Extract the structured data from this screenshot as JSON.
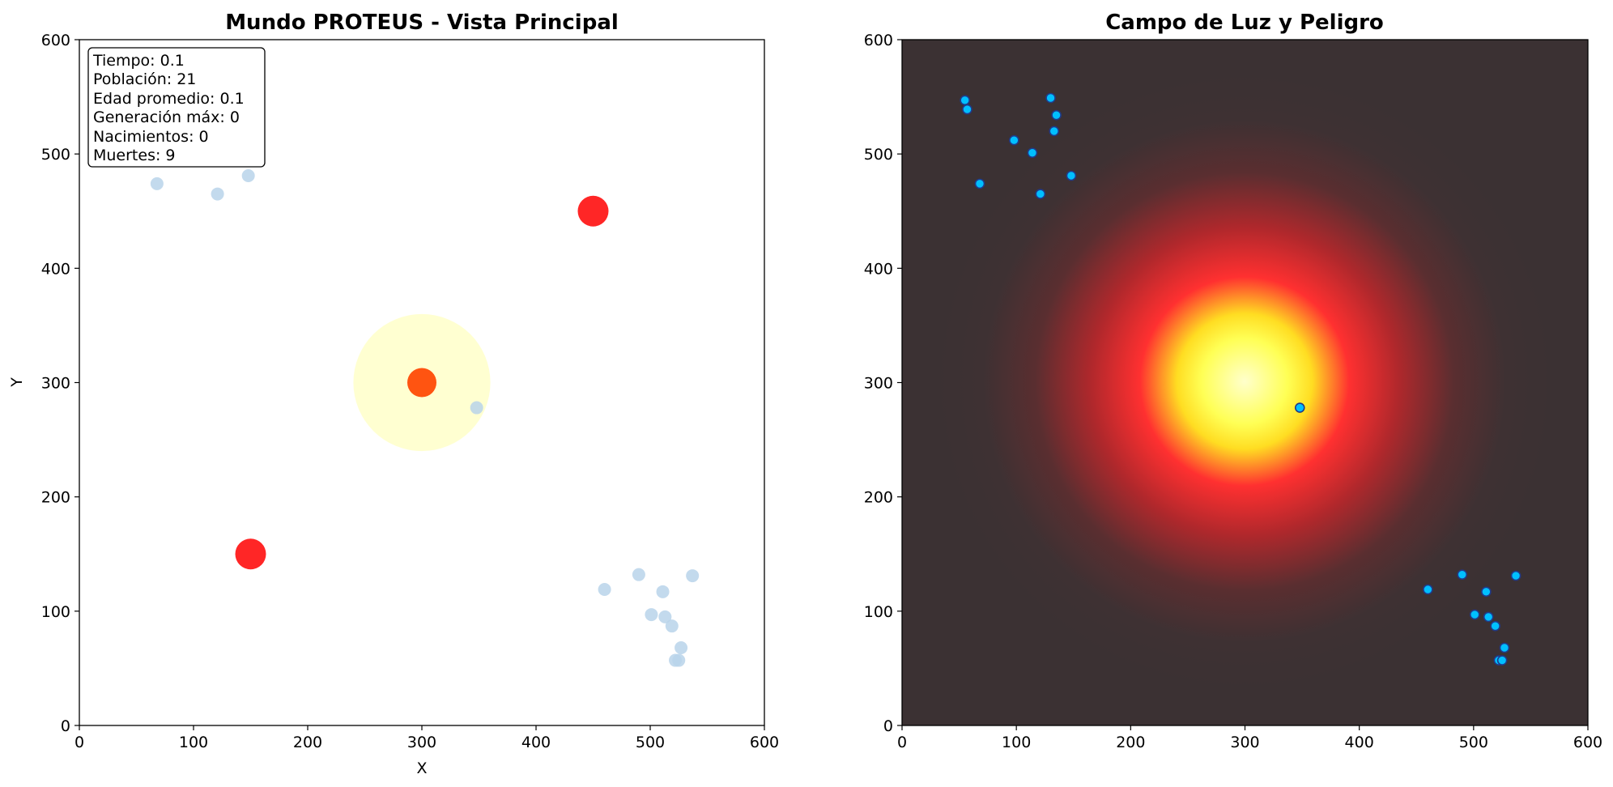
{
  "chart_data": [
    {
      "type": "scatter",
      "title": "Mundo PROTEUS - Vista Principal",
      "xlabel": "X",
      "ylabel": "Y",
      "xlim": [
        0,
        600
      ],
      "ylim": [
        0,
        600
      ],
      "xticks": [
        "0",
        "100",
        "200",
        "300",
        "400",
        "500",
        "600"
      ],
      "yticks": [
        "0",
        "100",
        "200",
        "300",
        "400",
        "500",
        "600"
      ],
      "grid": false,
      "light_source": {
        "x": 300,
        "y": 300,
        "radius": 60,
        "glow_color": "#ffffcc",
        "core_color": "#ff4500"
      },
      "hazards": [
        {
          "x": 450,
          "y": 450
        },
        {
          "x": 150,
          "y": 150
        }
      ],
      "hazard_color": "#ff1a1a",
      "organism_color": "#b9d3ea",
      "organisms": [
        {
          "x": 55,
          "y": 547
        },
        {
          "x": 57,
          "y": 539
        },
        {
          "x": 130,
          "y": 549
        },
        {
          "x": 135,
          "y": 534
        },
        {
          "x": 133,
          "y": 520
        },
        {
          "x": 98,
          "y": 512
        },
        {
          "x": 114,
          "y": 501
        },
        {
          "x": 148,
          "y": 481
        },
        {
          "x": 68,
          "y": 474
        },
        {
          "x": 121,
          "y": 465
        },
        {
          "x": 348,
          "y": 278
        },
        {
          "x": 490,
          "y": 132
        },
        {
          "x": 537,
          "y": 131
        },
        {
          "x": 460,
          "y": 119
        },
        {
          "x": 511,
          "y": 117
        },
        {
          "x": 501,
          "y": 97
        },
        {
          "x": 513,
          "y": 95
        },
        {
          "x": 519,
          "y": 87
        },
        {
          "x": 527,
          "y": 68
        },
        {
          "x": 522,
          "y": 57
        },
        {
          "x": 525,
          "y": 57
        }
      ],
      "stats": [
        "Tiempo: 0.1",
        "Población: 21",
        "Edad promedio: 0.1",
        "Generación máx: 0",
        "Nacimientos: 0",
        "Muertes: 9"
      ]
    },
    {
      "type": "heatmap",
      "title": "Campo de Luz y Peligro",
      "xlim": [
        0,
        600
      ],
      "ylim": [
        0,
        600
      ],
      "xticks": [
        "0",
        "100",
        "200",
        "300",
        "400",
        "500",
        "600"
      ],
      "yticks": [
        "0",
        "100",
        "200",
        "300",
        "400",
        "500",
        "600"
      ],
      "grid": false,
      "field_center": {
        "x": 300,
        "y": 300
      },
      "colors": {
        "background": "#3b3133",
        "mid": "#ff2a2a",
        "peak": "#ffffcc",
        "warm": "#ffff33"
      },
      "organism_color": "#00bfff",
      "organism_edge": "#1f3a8a",
      "organisms": [
        {
          "x": 55,
          "y": 547
        },
        {
          "x": 57,
          "y": 539
        },
        {
          "x": 130,
          "y": 549
        },
        {
          "x": 135,
          "y": 534
        },
        {
          "x": 133,
          "y": 520
        },
        {
          "x": 98,
          "y": 512
        },
        {
          "x": 114,
          "y": 501
        },
        {
          "x": 148,
          "y": 481
        },
        {
          "x": 68,
          "y": 474
        },
        {
          "x": 121,
          "y": 465
        },
        {
          "x": 348,
          "y": 278
        },
        {
          "x": 490,
          "y": 132
        },
        {
          "x": 537,
          "y": 131
        },
        {
          "x": 460,
          "y": 119
        },
        {
          "x": 511,
          "y": 117
        },
        {
          "x": 501,
          "y": 97
        },
        {
          "x": 513,
          "y": 95
        },
        {
          "x": 519,
          "y": 87
        },
        {
          "x": 527,
          "y": 68
        },
        {
          "x": 522,
          "y": 57
        },
        {
          "x": 525,
          "y": 57
        }
      ]
    }
  ]
}
